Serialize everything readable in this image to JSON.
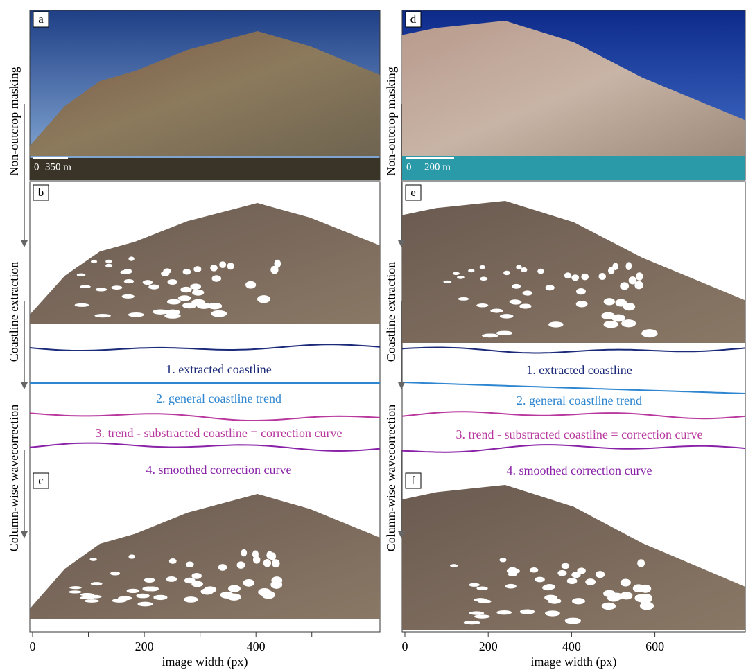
{
  "side_labels": [
    "Non-outcrop masking",
    "Coastline extraction",
    "Column-wise wavecorrection"
  ],
  "columns": [
    {
      "panels": [
        "a",
        "b",
        "c"
      ],
      "scale_bar": {
        "zero": "0",
        "length": "350 m"
      },
      "curves": [
        "1. extracted coastline",
        "2. general coastline trend",
        "3. trend - substracted coastline = correction curve",
        "4. smoothed correction curve"
      ],
      "axis": {
        "label": "image width (px)",
        "xlim": [
          0,
          622
        ],
        "xticks": [
          0,
          200,
          400
        ],
        "minor_ticks": [
          100,
          300,
          500
        ]
      }
    },
    {
      "panels": [
        "d",
        "e",
        "f"
      ],
      "scale_bar": {
        "zero": "0",
        "length": "200 m"
      },
      "curves": [
        "1. extracted coastline",
        "2. general coastline trend",
        "3. trend - substracted coastline = correction curve",
        "4. smoothed correction curve"
      ],
      "axis": {
        "label": "image width (px)",
        "xlim": [
          0,
          817
        ],
        "xticks": [
          0,
          200,
          400,
          600
        ],
        "minor_ticks": []
      }
    }
  ]
}
